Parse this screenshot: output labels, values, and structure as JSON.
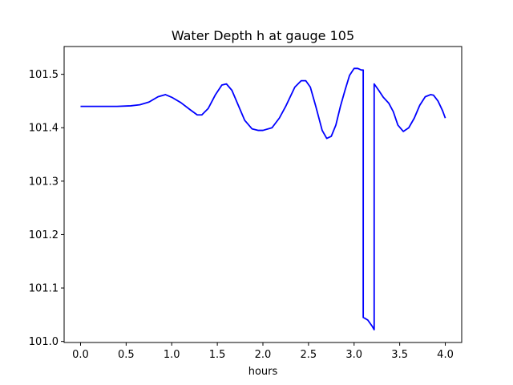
{
  "chart_data": {
    "type": "line",
    "title": "Water Depth h at gauge 105",
    "xlabel": "hours",
    "ylabel": "",
    "xlim": [
      -0.18,
      4.18
    ],
    "ylim": [
      100.998,
      101.552
    ],
    "xticks": [
      0.0,
      0.5,
      1.0,
      1.5,
      2.0,
      2.5,
      3.0,
      3.5,
      4.0
    ],
    "xtick_labels": [
      "0.0",
      "0.5",
      "1.0",
      "1.5",
      "2.0",
      "2.5",
      "3.0",
      "3.5",
      "4.0"
    ],
    "yticks": [
      101.0,
      101.1,
      101.2,
      101.3,
      101.4,
      101.5
    ],
    "ytick_labels": [
      "101.0",
      "101.1",
      "101.2",
      "101.3",
      "101.4",
      "101.5"
    ],
    "grid": false,
    "series": [
      {
        "color": "#0000ff",
        "x": [
          0.0,
          0.2,
          0.4,
          0.55,
          0.65,
          0.75,
          0.85,
          0.93,
          1.0,
          1.1,
          1.2,
          1.28,
          1.33,
          1.4,
          1.48,
          1.55,
          1.6,
          1.66,
          1.72,
          1.8,
          1.88,
          1.95,
          2.0,
          2.1,
          2.18,
          2.25,
          2.35,
          2.42,
          2.47,
          2.52,
          2.58,
          2.65,
          2.7,
          2.75,
          2.8,
          2.85,
          2.9,
          2.95,
          3.0,
          3.04,
          3.08,
          3.1,
          3.1,
          3.15,
          3.2,
          3.22,
          3.22,
          3.27,
          3.32,
          3.38,
          3.43,
          3.48,
          3.54,
          3.6,
          3.66,
          3.72,
          3.78,
          3.84,
          3.87,
          3.92,
          3.97,
          4.0
        ],
        "y": [
          101.44,
          101.44,
          101.44,
          101.441,
          101.443,
          101.448,
          101.458,
          101.462,
          101.457,
          101.447,
          101.434,
          101.424,
          101.424,
          101.436,
          101.462,
          101.48,
          101.482,
          101.47,
          101.446,
          101.414,
          101.398,
          101.395,
          101.395,
          101.4,
          101.418,
          101.44,
          101.476,
          101.488,
          101.488,
          101.476,
          101.44,
          101.395,
          101.38,
          101.384,
          101.405,
          101.44,
          101.47,
          101.498,
          101.511,
          101.511,
          101.508,
          101.508,
          101.045,
          101.04,
          101.028,
          101.022,
          101.482,
          101.47,
          101.457,
          101.446,
          101.43,
          101.405,
          101.393,
          101.4,
          101.418,
          101.442,
          101.458,
          101.462,
          101.461,
          101.45,
          101.432,
          101.418
        ]
      }
    ]
  }
}
